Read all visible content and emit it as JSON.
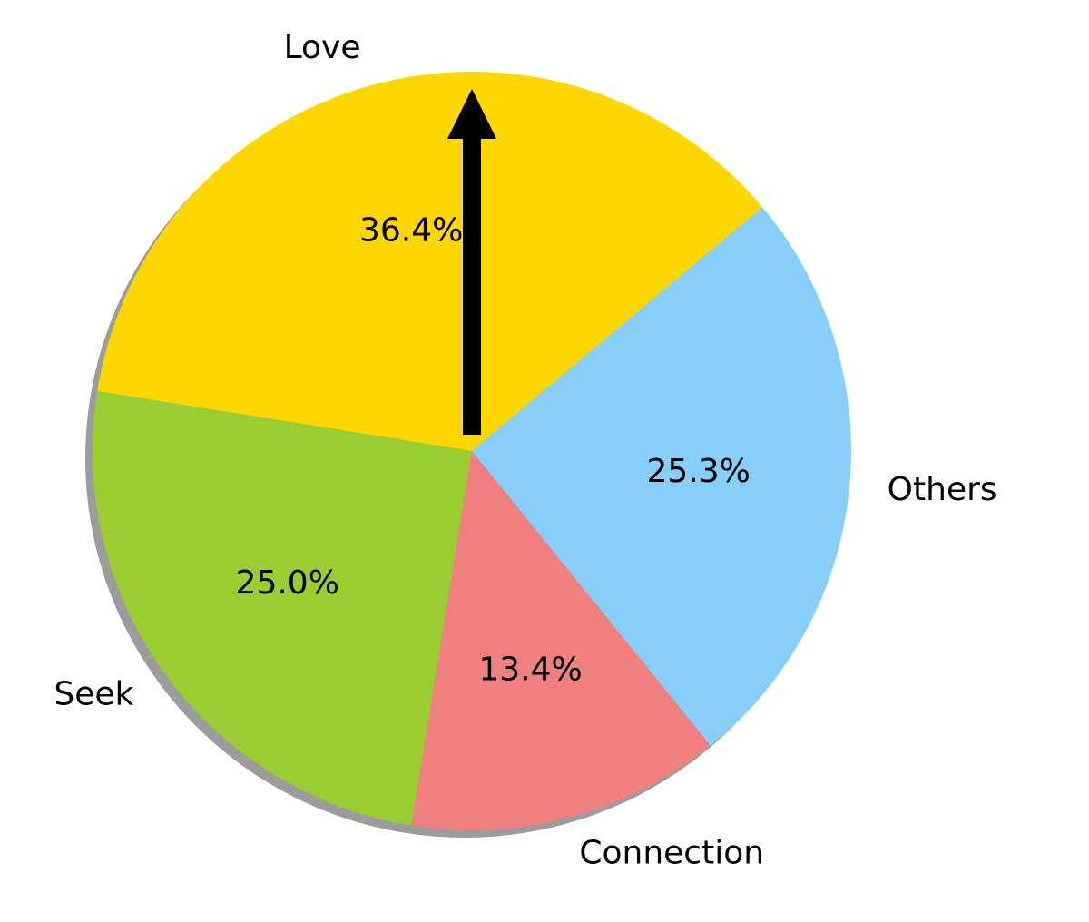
{
  "chart_data": {
    "type": "pie",
    "labels": [
      "Love",
      "Seek",
      "Connection",
      "Others"
    ],
    "values": [
      36.4,
      25.0,
      13.4,
      25.3
    ],
    "percent_labels": [
      "36.4%",
      "25.0%",
      "13.4%",
      "25.3%"
    ],
    "colors": [
      "#FFD700",
      "#9ACD32",
      "#F08080",
      "#87CEFA"
    ],
    "start_angle_deg": 40,
    "direction": "counterclockwise",
    "shadow": true,
    "annotation": {
      "type": "arrow",
      "color": "#000000",
      "direction": "up"
    }
  }
}
